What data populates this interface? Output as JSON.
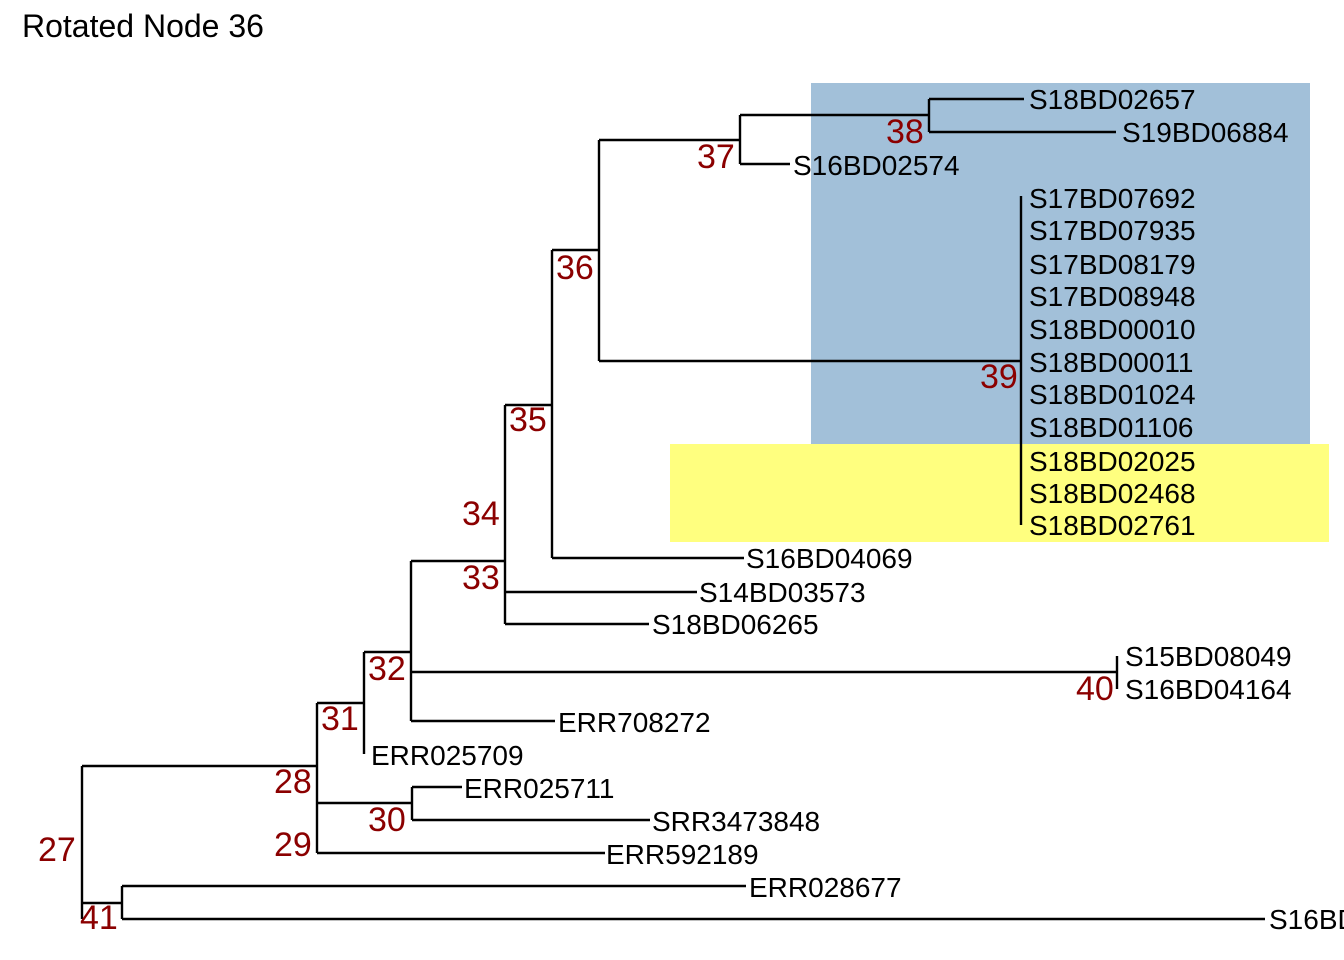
{
  "title": "Rotated Node 36",
  "colors": {
    "highlight_blue": "#4682b4",
    "highlight_yellow": "#ffff00",
    "node_label": "#8b0000",
    "edge": "#000000"
  },
  "highlights": [
    {
      "name": "node-38-39-clade",
      "color": "#4682b4"
    },
    {
      "name": "node-39-subclade",
      "color": "#ffff00"
    }
  ],
  "node_labels": [
    "27",
    "28",
    "29",
    "30",
    "31",
    "32",
    "33",
    "34",
    "35",
    "36",
    "37",
    "38",
    "39",
    "40",
    "41"
  ],
  "tips": [
    "S18BD02657",
    "S19BD06884",
    "S16BD02574",
    "S17BD07692",
    "S17BD07935",
    "S17BD08179",
    "S17BD08948",
    "S18BD00010",
    "S18BD00011",
    "S18BD01024",
    "S18BD01106",
    "S18BD02025",
    "S18BD02468",
    "S18BD02761",
    "S16BD04069",
    "S14BD03573",
    "S18BD06265",
    "S15BD08049",
    "S16BD04164",
    "ERR708272",
    "ERR025709",
    "ERR025711",
    "SRR3473848",
    "ERR592189",
    "ERR028677",
    "S16BD"
  ]
}
